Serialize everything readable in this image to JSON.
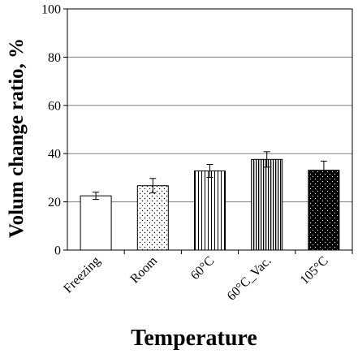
{
  "chart_data": {
    "type": "bar",
    "title": "",
    "xlabel": "Temperature",
    "ylabel": "Volum change ratio, %",
    "ylim": [
      0,
      100
    ],
    "yticks": [
      0,
      20,
      40,
      60,
      80,
      100
    ],
    "grid": true,
    "legend": "none",
    "categories": [
      "Freezing",
      "Room",
      "60°C",
      "60°C_Vac.",
      "105°C"
    ],
    "values": [
      22.5,
      26.7,
      32.8,
      37.6,
      33.1
    ],
    "errors": [
      1.5,
      3.0,
      2.7,
      3.2,
      3.8
    ],
    "bar_fills": [
      "white",
      "dots-sparse",
      "vlines-sparse",
      "vlines-dense",
      "black-dots"
    ]
  }
}
